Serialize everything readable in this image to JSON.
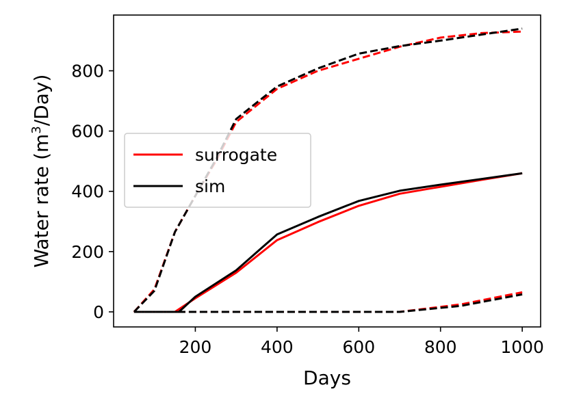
{
  "chart_data": {
    "type": "line",
    "title": "",
    "xlabel": "Days",
    "ylabel_prefix": "Water rate (m",
    "ylabel_sup": "3",
    "ylabel_suffix": "/Day)",
    "xlim": [
      0,
      1045
    ],
    "ylim": [
      -50,
      985
    ],
    "xticks": [
      200,
      400,
      600,
      800,
      1000
    ],
    "yticks": [
      0,
      200,
      400,
      600,
      800
    ],
    "legend": {
      "position": "center-left",
      "entries": [
        {
          "label": "surrogate",
          "color": "#ff0000"
        },
        {
          "label": "sim",
          "color": "#000000"
        }
      ]
    },
    "series": [
      {
        "name": "surrogate-upper",
        "color": "#ff0000",
        "style": "dashed",
        "x": [
          50,
          100,
          150,
          200,
          250,
          300,
          400,
          500,
          600,
          700,
          800,
          900,
          1000
        ],
        "y": [
          0,
          75,
          265,
          385,
          500,
          630,
          740,
          800,
          840,
          880,
          910,
          925,
          930
        ]
      },
      {
        "name": "sim-upper",
        "color": "#000000",
        "style": "dashed",
        "x": [
          50,
          100,
          150,
          200,
          250,
          300,
          400,
          500,
          600,
          700,
          800,
          900,
          1000
        ],
        "y": [
          0,
          70,
          265,
          385,
          505,
          640,
          748,
          808,
          857,
          882,
          900,
          920,
          940
        ]
      },
      {
        "name": "surrogate-middle",
        "color": "#ff0000",
        "style": "solid",
        "x": [
          50,
          150,
          200,
          300,
          400,
          500,
          600,
          700,
          800,
          900,
          1000
        ],
        "y": [
          0,
          0,
          45,
          130,
          238,
          298,
          352,
          392,
          415,
          438,
          460
        ]
      },
      {
        "name": "sim-middle",
        "color": "#000000",
        "style": "solid",
        "x": [
          50,
          160,
          200,
          300,
          400,
          500,
          600,
          700,
          800,
          900,
          1000
        ],
        "y": [
          0,
          0,
          50,
          138,
          257,
          315,
          368,
          402,
          422,
          441,
          460
        ]
      },
      {
        "name": "surrogate-lower",
        "color": "#ff0000",
        "style": "dashed",
        "x": [
          50,
          150,
          300,
          500,
          700,
          850,
          1000
        ],
        "y": [
          0,
          0,
          0,
          0,
          0,
          25,
          65
        ]
      },
      {
        "name": "sim-lower",
        "color": "#000000",
        "style": "dashed",
        "x": [
          50,
          150,
          300,
          500,
          700,
          850,
          1000
        ],
        "y": [
          0,
          0,
          0,
          0,
          0,
          20,
          58
        ]
      }
    ]
  }
}
